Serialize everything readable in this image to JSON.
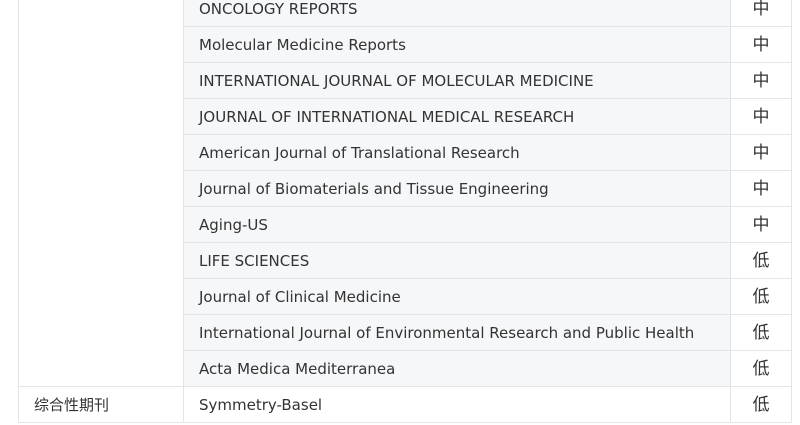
{
  "table": {
    "rows": [
      {
        "journal": "ONCOLOGY REPORTS",
        "level": "中"
      },
      {
        "journal": "Molecular Medicine Reports",
        "level": "中"
      },
      {
        "journal": "INTERNATIONAL JOURNAL OF MOLECULAR MEDICINE",
        "level": "中"
      },
      {
        "journal": "JOURNAL OF INTERNATIONAL MEDICAL RESEARCH",
        "level": "中"
      },
      {
        "journal": "American Journal of Translational Research",
        "level": "中"
      },
      {
        "journal": "Journal of Biomaterials and Tissue Engineering",
        "level": "中"
      },
      {
        "journal": "Aging-US",
        "level": "中"
      },
      {
        "journal": "LIFE SCIENCES",
        "level": "低"
      },
      {
        "journal": "Journal of Clinical Medicine",
        "level": "低"
      },
      {
        "journal": "International Journal of Environmental Research and Public Health",
        "level": "低"
      },
      {
        "journal": "Acta Medica Mediterranea",
        "level": "低"
      },
      {
        "category": "综合性期刊",
        "journal": "Symmetry-Basel",
        "level": "低"
      }
    ]
  }
}
